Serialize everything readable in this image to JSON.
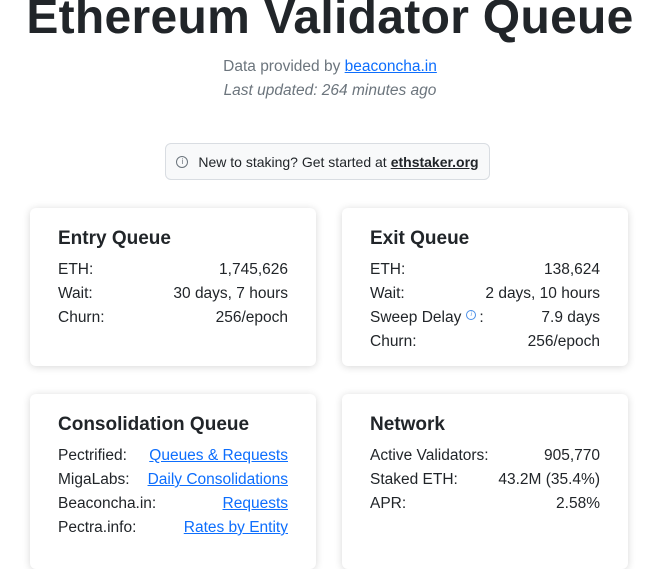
{
  "header": {
    "title": "Ethereum Validator Queue",
    "provided_prefix": "Data provided by ",
    "provided_link": "beaconcha.in",
    "last_updated": "Last updated: 264 minutes ago"
  },
  "notice": {
    "icon": "info-icon",
    "text": "New to staking? Get started at",
    "link": "ethstaker.org"
  },
  "entry_queue": {
    "title": "Entry Queue",
    "rows": [
      {
        "label": "ETH:",
        "value": "1,745,626"
      },
      {
        "label": "Wait:",
        "value": "30 days, 7 hours"
      },
      {
        "label": "Churn:",
        "value": "256/epoch"
      }
    ]
  },
  "exit_queue": {
    "title": "Exit Queue",
    "rows": [
      {
        "label": "ETH:",
        "value": "138,624"
      },
      {
        "label": "Wait:",
        "value": "2 days, 10 hours"
      },
      {
        "label": "Sweep Delay",
        "suffix": ":",
        "value": "7.9 days",
        "icon": "help-icon"
      },
      {
        "label": "Churn:",
        "value": "256/epoch"
      }
    ]
  },
  "consolidation_queue": {
    "title": "Consolidation Queue",
    "rows": [
      {
        "label": "Pectrified:",
        "link": "Queues & Requests"
      },
      {
        "label": "MigaLabs:",
        "link": "Daily Consolidations"
      },
      {
        "label": "Beaconcha.in:",
        "link": "Requests"
      },
      {
        "label": "Pectra.info:",
        "link": "Rates by Entity"
      }
    ]
  },
  "network": {
    "title": "Network",
    "rows": [
      {
        "label": "Active Validators:",
        "value": "905,770"
      },
      {
        "label": "Staked ETH:",
        "value": "43.2M (35.4%)"
      },
      {
        "label": "APR:",
        "value": "2.58%"
      }
    ]
  },
  "colors": {
    "link": "#0d6efd",
    "muted": "#6c757d",
    "text": "#212529"
  }
}
